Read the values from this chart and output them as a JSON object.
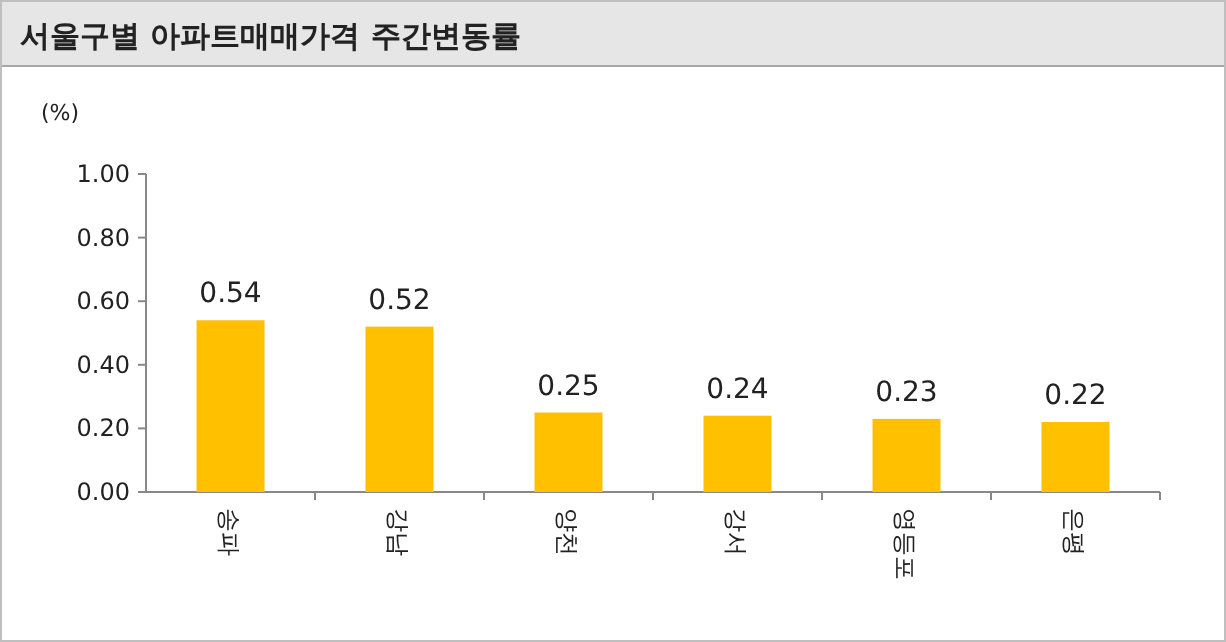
{
  "chart_data": {
    "type": "bar",
    "title": "서울구별 아파트매매가격 주간변동률",
    "ylabel": "(%)",
    "categories": [
      "송파",
      "강남",
      "양천",
      "강서",
      "영등포",
      "은평"
    ],
    "values": [
      0.54,
      0.52,
      0.25,
      0.24,
      0.23,
      0.22
    ],
    "color": "#ffc000",
    "ylim": [
      0,
      1
    ],
    "yticks": [
      {
        "value": 0,
        "label": "0.00"
      },
      {
        "value": 0.2,
        "label": "0.20"
      },
      {
        "value": 0.4,
        "label": "0.40"
      },
      {
        "value": 0.6,
        "label": "0.60"
      },
      {
        "value": 0.8,
        "label": "0.80"
      },
      {
        "value": 1,
        "label": "1.00"
      }
    ],
    "data_labels": true
  }
}
